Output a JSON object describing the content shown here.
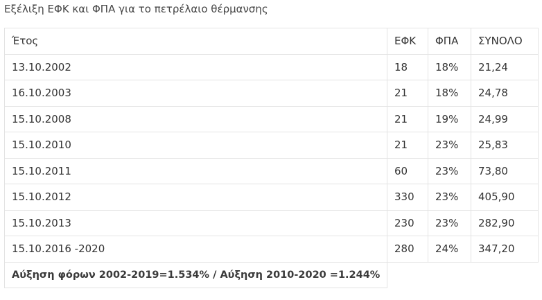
{
  "caption": "Εξέλιξη ΕΦΚ και ΦΠΑ για το πετρέλαιο θέρμανσης",
  "table": {
    "headers": [
      "Έτος",
      "ΕΦΚ",
      "ΦΠΑ",
      "ΣΥΝΟΛΟ"
    ],
    "rows": [
      [
        "13.10.2002",
        "18",
        "18%",
        "21,24"
      ],
      [
        "16.10.2003",
        "21",
        "18%",
        "24,78"
      ],
      [
        "15.10.2008",
        "21",
        "19%",
        "24,99"
      ],
      [
        "15.10.2010",
        "21",
        "23%",
        "25,83"
      ],
      [
        "15.10.2011",
        "60",
        "23%",
        "73,80"
      ],
      [
        "15.10.2012",
        "330",
        "23%",
        "405,90"
      ],
      [
        "15.10.2013",
        "230",
        "23%",
        "282,90"
      ],
      [
        "15.10.2016 -2020",
        "280",
        "24%",
        "347,20"
      ]
    ],
    "summary": "Αύξηση φόρων 2002-2019=1.534%  / Αύξηση 2010-2020 =1.244%"
  }
}
